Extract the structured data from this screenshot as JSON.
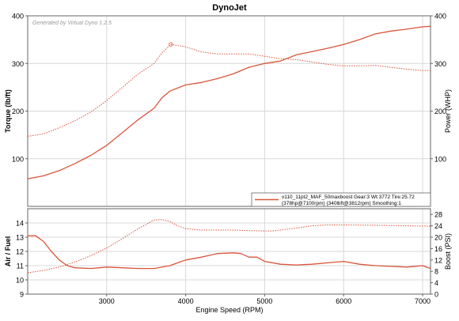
{
  "title": "DynoJet",
  "colors": {
    "series": "#d9553a",
    "grid": "#d8d8d8",
    "axis": "#666666",
    "text": "#000000",
    "watermark": "#9a9a9a"
  },
  "chart_data": [
    {
      "type": "line",
      "watermark": "Generated by Virtual Dyno 1.2.5",
      "xlim": [
        2000,
        7100
      ],
      "xticks": [
        3000,
        4000,
        5000,
        6000,
        7000
      ],
      "ylabel": "Torque (lb/ft)",
      "ylim": [
        0,
        400
      ],
      "yticks": [
        100,
        200,
        300,
        400
      ],
      "y2label": "Power (WHP)",
      "y2lim": [
        0,
        400
      ],
      "y2ticks": [
        100,
        200,
        300,
        400
      ],
      "grid": true,
      "legend_position": "bottom-right",
      "legend_lines": [
        "v110_11pt2_MAF_50maxboost Gear:3 Wt:3772 Tire:25.72",
        "(378hp@7100rpm) (340lbft@3812rpm) Smoothing:1"
      ],
      "peak_marker": {
        "x": 3812,
        "y": 340
      },
      "series": [
        {
          "name": "Power",
          "axis": "right",
          "style": "solid",
          "x": [
            2000,
            2200,
            2400,
            2600,
            2800,
            3000,
            3200,
            3400,
            3600,
            3700,
            3800,
            4000,
            4200,
            4400,
            4600,
            4800,
            5000,
            5200,
            5400,
            5600,
            5800,
            6000,
            6200,
            6400,
            6600,
            6800,
            7000,
            7100
          ],
          "y": [
            58,
            64,
            75,
            90,
            107,
            128,
            155,
            182,
            206,
            228,
            242,
            255,
            260,
            268,
            278,
            292,
            300,
            305,
            318,
            325,
            332,
            340,
            350,
            362,
            368,
            372,
            377,
            378
          ]
        },
        {
          "name": "Torque",
          "axis": "left",
          "style": "dotted",
          "x": [
            2000,
            2200,
            2400,
            2600,
            2800,
            3000,
            3200,
            3400,
            3600,
            3700,
            3812,
            4000,
            4200,
            4400,
            4600,
            4800,
            5000,
            5200,
            5400,
            5600,
            5800,
            6000,
            6200,
            6400,
            6600,
            6800,
            7000,
            7100
          ],
          "y": [
            147,
            152,
            165,
            180,
            198,
            222,
            250,
            278,
            300,
            322,
            340,
            335,
            324,
            320,
            320,
            320,
            315,
            310,
            308,
            303,
            298,
            295,
            295,
            296,
            292,
            288,
            285,
            285
          ]
        }
      ]
    },
    {
      "type": "line",
      "xlabel": "Engine Speed (RPM)",
      "xlim": [
        2000,
        7100
      ],
      "xticks": [
        3000,
        4000,
        5000,
        6000,
        7000
      ],
      "ylabel": "Air / Fuel",
      "ylim": [
        9,
        15
      ],
      "yticks": [
        9,
        10,
        11,
        12,
        13,
        14
      ],
      "y2label": "Boost (PSI)",
      "y2lim": [
        0,
        30
      ],
      "y2ticks": [
        0,
        4,
        8,
        12,
        16,
        20,
        24,
        28
      ],
      "grid": true,
      "series": [
        {
          "name": "Air / Fuel",
          "axis": "left",
          "style": "solid",
          "x": [
            2000,
            2100,
            2200,
            2300,
            2400,
            2500,
            2600,
            2800,
            3000,
            3200,
            3400,
            3600,
            3800,
            3900,
            4000,
            4200,
            4400,
            4600,
            4700,
            4800,
            4900,
            5000,
            5200,
            5400,
            5600,
            5800,
            6000,
            6200,
            6400,
            6600,
            6800,
            7000,
            7100
          ],
          "y": [
            13.1,
            13.1,
            12.7,
            12.0,
            11.4,
            11.0,
            10.85,
            10.8,
            10.9,
            10.85,
            10.8,
            10.8,
            11.0,
            11.2,
            11.4,
            11.6,
            11.85,
            11.9,
            11.85,
            11.6,
            11.6,
            11.3,
            11.1,
            11.05,
            11.1,
            11.2,
            11.3,
            11.1,
            11.0,
            10.95,
            10.9,
            11.0,
            10.8
          ]
        },
        {
          "name": "Boost",
          "axis": "right",
          "style": "dotted",
          "x": [
            2000,
            2200,
            2400,
            2600,
            2800,
            3000,
            3200,
            3400,
            3600,
            3700,
            3800,
            3900,
            4000,
            4200,
            4400,
            4600,
            4800,
            5000,
            5100,
            5200,
            5400,
            5600,
            5800,
            6000,
            6400,
            6800,
            7100
          ],
          "y": [
            7.5,
            8.3,
            9.5,
            11.3,
            13.5,
            16.2,
            19.5,
            23.0,
            26.0,
            26.2,
            25.5,
            24.0,
            23.0,
            22.5,
            22.5,
            22.5,
            22.3,
            22.2,
            22.2,
            22.5,
            23.2,
            24.0,
            24.3,
            24.3,
            24.2,
            24.0,
            23.9
          ]
        }
      ]
    }
  ]
}
